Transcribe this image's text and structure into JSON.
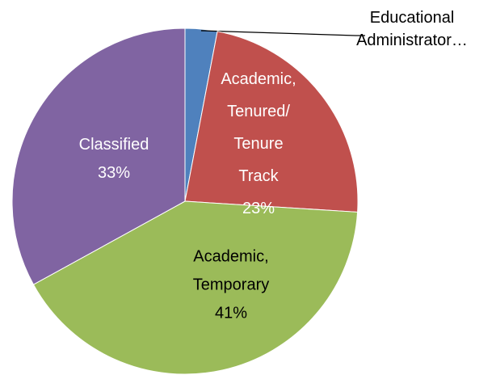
{
  "chart_data": {
    "type": "pie",
    "categories": [
      "Educational\nAdministrator…",
      "Academic,\nTenured/\nTenure\nTrack",
      "Academic,\nTemporary",
      "Classified"
    ],
    "values": [
      3,
      23,
      41,
      33
    ],
    "value_labels": [
      null,
      "23%",
      "41%",
      "33%"
    ],
    "colors": [
      "#4f81bd",
      "#c0504d",
      "#9bbb59",
      "#8064a2"
    ]
  }
}
